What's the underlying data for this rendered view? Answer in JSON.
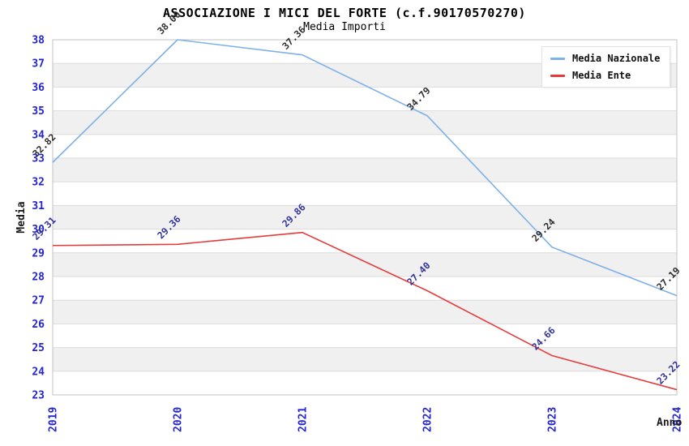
{
  "header": {
    "title": "ASSOCIAZIONE I MICI DEL FORTE (c.f.90170570270)",
    "subtitle": "Media Importi"
  },
  "chart_data": {
    "type": "line",
    "title": "ASSOCIAZIONE I MICI DEL FORTE (c.f.90170570270)",
    "subtitle": "Media Importi",
    "x": [
      "2019",
      "2020",
      "2021",
      "2022",
      "2023",
      "2024"
    ],
    "series": [
      {
        "name": "Media Nazionale",
        "color": "#7db1e8",
        "label_color": "#2f2f2f",
        "values": [
          32.82,
          38.0,
          37.36,
          34.79,
          29.24,
          27.19
        ]
      },
      {
        "name": "Media Ente",
        "color": "#e53b3b",
        "label_color": "#333399",
        "values": [
          29.31,
          29.36,
          29.86,
          27.4,
          24.66,
          23.22
        ]
      }
    ],
    "xlabel": "Anno",
    "ylabel": "Media",
    "ylim": [
      23,
      38
    ],
    "yticks": [
      23,
      24,
      25,
      26,
      27,
      28,
      29,
      30,
      31,
      32,
      33,
      34,
      35,
      36,
      37,
      38
    ],
    "value_labels_decimals": 2,
    "value_labels_rotation": -45,
    "xtick_rotation": -90,
    "grid": "horizontal-bands-alternating",
    "legend_position": "top-right",
    "colors": {
      "background": "#ffffff",
      "band": "#f0f0f1",
      "gridline": "#dcdcdc",
      "frame": "#c3c3c3",
      "tick_label": "#2424cc",
      "axis_label": "#1a1a1a",
      "title": "#1f1f1f",
      "subtitle": "#333333"
    }
  }
}
